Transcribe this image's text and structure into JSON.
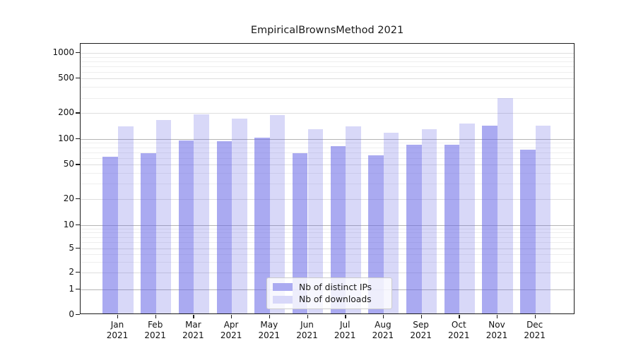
{
  "chart_data": {
    "type": "bar",
    "title": "EmpiricalBrownsMethod 2021",
    "scale": "symlog",
    "grid": true,
    "legend_position": "lower center",
    "year_label": "2021",
    "categories": [
      "Jan",
      "Feb",
      "Mar",
      "Apr",
      "May",
      "Jun",
      "Jul",
      "Aug",
      "Sep",
      "Oct",
      "Nov",
      "Dec"
    ],
    "y_ticks": [
      0,
      1,
      2,
      5,
      10,
      20,
      50,
      100,
      200,
      500,
      1000
    ],
    "ylim": [
      0,
      1280
    ],
    "series": [
      {
        "name": "Nb of distinct IPs",
        "values": [
          60,
          65,
          93,
          90,
          99,
          65,
          80,
          62,
          82,
          82,
          137,
          72
        ]
      },
      {
        "name": "Nb of downloads",
        "values": [
          135,
          160,
          187,
          168,
          182,
          125,
          135,
          113,
          126,
          146,
          287,
          137
        ]
      }
    ],
    "colors": {
      "distinct_ips": "rgba(101,101,229,0.55)",
      "downloads": "rgba(101,101,229,0.25)"
    }
  }
}
